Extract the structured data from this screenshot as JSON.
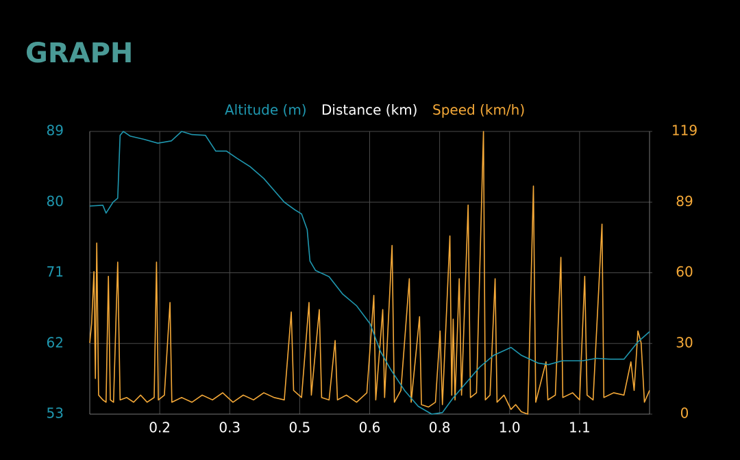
{
  "chart_data": {
    "type": "line",
    "title": "GRAPH",
    "xlabel": "Distance (km)",
    "xlim": [
      0.05,
      1.25
    ],
    "xticks": [
      {
        "value": 0.2,
        "label": "0.2"
      },
      {
        "value": 0.35,
        "label": "0.3"
      },
      {
        "value": 0.5,
        "label": "0.5"
      },
      {
        "value": 0.65,
        "label": "0.6"
      },
      {
        "value": 0.8,
        "label": "0.8"
      },
      {
        "value": 0.95,
        "label": "1.0"
      },
      {
        "value": 1.1,
        "label": "1.1"
      }
    ],
    "ylim": [
      53,
      89
    ],
    "yticks": [
      53,
      62,
      71,
      80,
      89
    ],
    "y2lim": [
      0,
      119
    ],
    "y2ticks": [
      0,
      {
        "value": 29.75,
        "label": "30"
      },
      {
        "value": 59.5,
        "label": "60"
      },
      {
        "value": 89.25,
        "label": "89"
      },
      119
    ],
    "grid": true,
    "legend": "top",
    "series": [
      {
        "name": "Altitude (m)",
        "color": "#1f98b0",
        "axis": "y",
        "x": [
          0.05,
          0.078,
          0.085,
          0.1,
          0.11,
          0.115,
          0.122,
          0.137,
          0.166,
          0.196,
          0.225,
          0.247,
          0.269,
          0.298,
          0.32,
          0.343,
          0.365,
          0.394,
          0.423,
          0.445,
          0.467,
          0.49,
          0.504,
          0.516,
          0.522,
          0.534,
          0.563,
          0.592,
          0.622,
          0.651,
          0.673,
          0.695,
          0.725,
          0.754,
          0.783,
          0.806,
          0.828,
          0.857,
          0.886,
          0.916,
          0.953,
          0.975,
          1.011,
          1.033,
          1.063,
          1.107,
          1.136,
          1.166,
          1.195,
          1.225,
          1.25
        ],
        "values": [
          79.5,
          79.6,
          78.6,
          80,
          80.5,
          88.5,
          89,
          88.4,
          88,
          87.5,
          87.8,
          89,
          88.6,
          88.5,
          86.5,
          86.5,
          85.6,
          84.5,
          83,
          81.5,
          80,
          79,
          78.5,
          76.5,
          72.5,
          71.3,
          70.5,
          68.3,
          66.8,
          64.5,
          61,
          58.7,
          56,
          54,
          53,
          53.2,
          55,
          57,
          59,
          60.5,
          61.5,
          60.5,
          59.5,
          59.3,
          59.8,
          59.8,
          60.1,
          60,
          60,
          62.2,
          63.5
        ]
      },
      {
        "name": "Speed (km/h)",
        "color": "#f5a938",
        "axis": "y2",
        "x": [
          0.05,
          0.054,
          0.059,
          0.062,
          0.065,
          0.069,
          0.078,
          0.085,
          0.09,
          0.094,
          0.101,
          0.11,
          0.115,
          0.129,
          0.144,
          0.159,
          0.173,
          0.188,
          0.193,
          0.197,
          0.21,
          0.222,
          0.226,
          0.247,
          0.269,
          0.291,
          0.313,
          0.335,
          0.357,
          0.379,
          0.401,
          0.423,
          0.445,
          0.467,
          0.482,
          0.487,
          0.504,
          0.52,
          0.525,
          0.542,
          0.547,
          0.563,
          0.576,
          0.581,
          0.6,
          0.622,
          0.644,
          0.659,
          0.663,
          0.678,
          0.682,
          0.698,
          0.703,
          0.717,
          0.735,
          0.739,
          0.757,
          0.761,
          0.776,
          0.791,
          0.801,
          0.806,
          0.822,
          0.826,
          0.829,
          0.833,
          0.842,
          0.847,
          0.861,
          0.866,
          0.879,
          0.894,
          0.898,
          0.908,
          0.919,
          0.923,
          0.938,
          0.953,
          0.963,
          0.975,
          0.989,
          1.001,
          1.006,
          1.028,
          1.032,
          1.048,
          1.06,
          1.064,
          1.085,
          1.1,
          1.111,
          1.116,
          1.129,
          1.148,
          1.152,
          1.173,
          1.195,
          1.21,
          1.217,
          1.225,
          1.232,
          1.239,
          1.25
        ],
        "values": [
          30,
          38,
          60,
          15,
          72,
          8,
          6,
          5,
          58,
          6,
          5,
          64,
          6,
          7,
          5,
          8,
          5,
          7,
          64,
          6,
          8,
          47,
          5,
          7,
          5,
          8,
          6,
          9,
          5,
          8,
          6,
          9,
          7,
          6,
          43,
          10,
          7,
          47,
          8,
          44,
          7,
          6,
          31,
          6,
          8,
          5,
          9,
          50,
          6,
          44,
          7,
          71,
          5,
          10,
          57,
          5,
          41,
          4,
          3,
          5,
          35,
          4,
          75,
          8,
          40,
          6,
          57,
          8,
          88,
          7,
          9,
          119,
          6,
          8,
          57,
          5,
          8,
          2,
          4,
          1,
          0,
          96,
          5,
          22,
          6,
          8,
          66,
          7,
          9,
          6,
          58,
          8,
          6,
          80,
          7,
          9,
          8,
          22,
          10,
          35,
          30,
          5,
          10
        ]
      }
    ]
  }
}
